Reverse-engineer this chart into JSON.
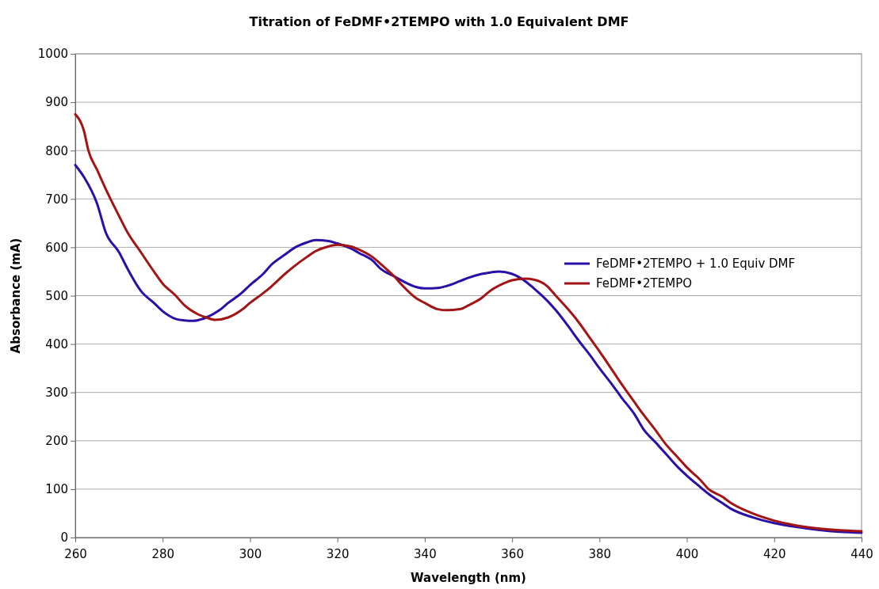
{
  "chart_data": {
    "type": "line",
    "title": "Titration of FeDMF•2TEMPO with 1.0 Equivalent DMF",
    "xlabel": "Wavelength (nm)",
    "ylabel": "Absorbance (mA)",
    "xlim": [
      260,
      440
    ],
    "xticks": [
      260,
      280,
      300,
      320,
      340,
      360,
      380,
      400,
      420,
      440
    ],
    "ylim": [
      0,
      1000
    ],
    "yticks": [
      0,
      100,
      200,
      300,
      400,
      500,
      600,
      700,
      800,
      900,
      1000
    ],
    "grid": "y",
    "legend": "right",
    "line_style": "solid",
    "marker": "none",
    "series": [
      {
        "name": "FeDMF•2TEMPO + 1.0 Equiv DMF",
        "color": "#2a0fa8",
        "x": [
          260,
          262,
          265,
          267,
          270,
          272,
          275,
          278,
          280,
          283,
          285,
          287,
          290,
          293,
          295,
          298,
          300,
          303,
          305,
          308,
          310,
          313,
          315,
          318,
          320,
          323,
          325,
          328,
          330,
          333,
          335,
          338,
          340,
          343,
          345,
          348,
          350,
          353,
          355,
          357,
          360,
          363,
          365,
          368,
          370,
          373,
          375,
          378,
          380,
          383,
          385,
          388,
          390,
          393,
          395,
          398,
          400,
          403,
          405,
          408,
          410,
          415,
          420,
          425,
          430,
          435,
          440
        ],
        "values": [
          770,
          745,
          690,
          630,
          590,
          555,
          510,
          485,
          468,
          452,
          449,
          448,
          455,
          470,
          485,
          505,
          522,
          545,
          565,
          585,
          598,
          610,
          615,
          613,
          608,
          598,
          588,
          573,
          555,
          540,
          530,
          518,
          515,
          516,
          520,
          530,
          537,
          545,
          548,
          550,
          545,
          530,
          515,
          490,
          470,
          435,
          410,
          375,
          350,
          315,
          290,
          255,
          225,
          195,
          175,
          145,
          128,
          105,
          90,
          72,
          60,
          42,
          30,
          22,
          16,
          12,
          10
        ]
      },
      {
        "name": "FeDMF•2TEMPO",
        "color": "#a31414",
        "x": [
          260,
          262,
          263,
          265,
          267,
          270,
          272,
          275,
          278,
          280,
          283,
          285,
          288,
          290,
          292,
          295,
          298,
          300,
          303,
          305,
          308,
          310,
          313,
          315,
          318,
          320,
          323,
          325,
          328,
          330,
          333,
          335,
          338,
          340,
          343,
          345,
          348,
          350,
          353,
          355,
          358,
          360,
          363,
          365,
          368,
          370,
          373,
          375,
          378,
          380,
          383,
          385,
          388,
          390,
          393,
          395,
          398,
          400,
          403,
          405,
          408,
          410,
          415,
          420,
          425,
          430,
          435,
          440
        ],
        "values": [
          875,
          840,
          800,
          760,
          720,
          665,
          630,
          590,
          550,
          525,
          500,
          480,
          462,
          455,
          450,
          455,
          470,
          485,
          505,
          520,
          545,
          560,
          580,
          592,
          602,
          605,
          602,
          595,
          580,
          565,
          540,
          520,
          495,
          485,
          472,
          470,
          472,
          480,
          495,
          510,
          525,
          532,
          535,
          533,
          520,
          500,
          470,
          448,
          410,
          385,
          345,
          318,
          280,
          255,
          220,
          195,
          165,
          145,
          120,
          100,
          85,
          72,
          50,
          35,
          25,
          19,
          15,
          13
        ]
      }
    ]
  }
}
